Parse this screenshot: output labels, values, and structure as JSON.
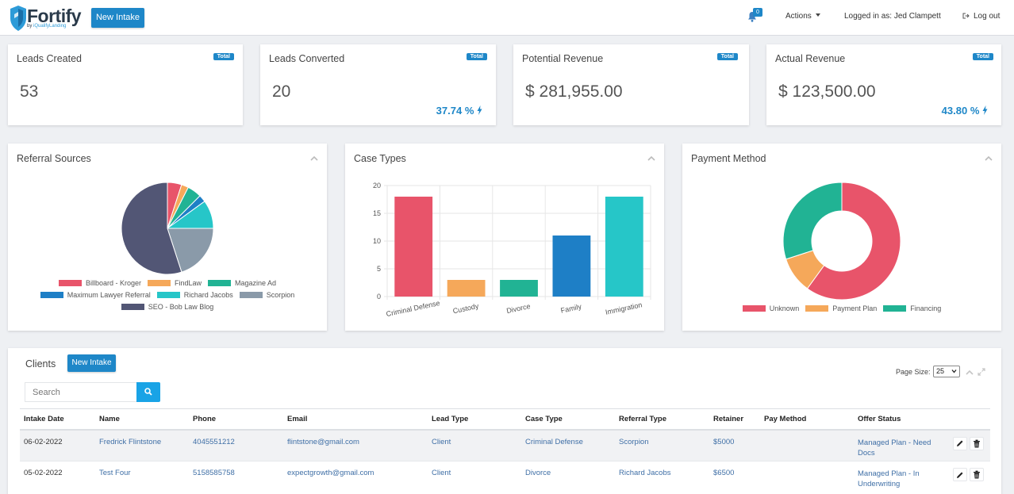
{
  "header": {
    "logo_word": "Fortify",
    "logo_sub_prefix": "by",
    "logo_sub_brand": "iQualifyLanding",
    "new_intake_label": "New Intake",
    "notification_count": "0",
    "actions_label": "Actions",
    "logged_in_label": "Logged in as: Jed Clampett",
    "logout_label": "Log out"
  },
  "stats": [
    {
      "label": "Leads Created",
      "badge": "Total",
      "value": "53",
      "percent": ""
    },
    {
      "label": "Leads Converted",
      "badge": "Total",
      "value": "20",
      "percent": "37.74 %"
    },
    {
      "label": "Potential Revenue",
      "badge": "Total",
      "value": "$ 281,955.00",
      "percent": ""
    },
    {
      "label": "Actual Revenue",
      "badge": "Total",
      "value": "$ 123,500.00",
      "percent": "43.80 %"
    }
  ],
  "panels": {
    "referral_title": "Referral Sources",
    "case_title": "Case Types",
    "payment_title": "Payment Method"
  },
  "chart_data": [
    {
      "type": "pie",
      "title": "Referral Sources",
      "categories": [
        "Billboard - Kroger",
        "FindLaw",
        "Magazine Ad",
        "Maximum Lawyer Referral",
        "Richard Jacobs",
        "Scorpion",
        "SEO - Bob Law Blog"
      ],
      "values": [
        1,
        0.5,
        1,
        0.5,
        2,
        4,
        11
      ],
      "colors": [
        "#e8546a",
        "#f5a85a",
        "#21b394",
        "#1e7fc6",
        "#26c6c8",
        "#8a9aa9",
        "#525675"
      ]
    },
    {
      "type": "bar",
      "title": "Case Types",
      "categories": [
        "Criminal Defense",
        "Custody",
        "Divorce",
        "Family",
        "Immigration"
      ],
      "values": [
        18,
        3,
        3,
        11,
        18
      ],
      "colors": [
        "#e8546a",
        "#f5a85a",
        "#21b394",
        "#1e7fc6",
        "#26c6c8"
      ],
      "ylim": [
        0,
        20
      ],
      "yticks": [
        "0",
        "5",
        "10",
        "15",
        "20"
      ]
    },
    {
      "type": "pie",
      "title": "Payment Method",
      "categories": [
        "Unknown",
        "Payment Plan",
        "Financing"
      ],
      "values": [
        12,
        2,
        6
      ],
      "colors": [
        "#e8546a",
        "#f5a85a",
        "#21b394"
      ]
    }
  ],
  "clients": {
    "title": "Clients",
    "new_intake_label": "New Intake",
    "search_placeholder": "Search",
    "page_size_label": "Page Size:",
    "page_size_value": "25",
    "columns": [
      "Intake Date",
      "Name",
      "Phone",
      "Email",
      "Lead Type",
      "Case Type",
      "Referral Type",
      "Retainer",
      "Pay Method",
      "Offer Status"
    ],
    "rows": [
      {
        "intake_date": "06-02-2022",
        "name": "Fredrick Flintstone",
        "phone": "4045551212",
        "email": "flintstone@gmail.com",
        "lead_type": "Client",
        "case_type": "Criminal Defense",
        "referral_type": "Scorpion",
        "retainer": "$5000",
        "pay_method": "",
        "offer_status": "Managed Plan - Need Docs"
      },
      {
        "intake_date": "05-02-2022",
        "name": "Test Four",
        "phone": "5158585758",
        "email": "expectgrowth@gmail.com",
        "lead_type": "Client",
        "case_type": "Divorce",
        "referral_type": "Richard Jacobs",
        "retainer": "$6500",
        "pay_method": "",
        "offer_status": "Managed Plan - In Underwriting"
      }
    ]
  }
}
